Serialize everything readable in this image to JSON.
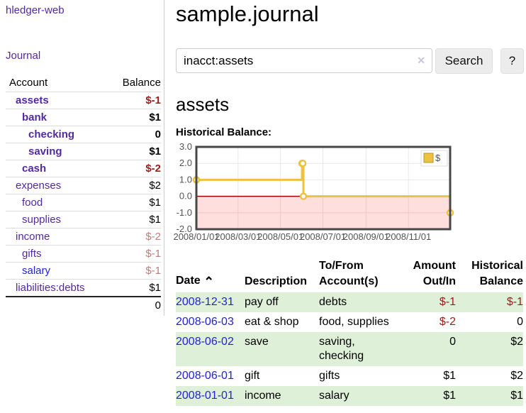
{
  "colors": {
    "link_purple": "#5329a0",
    "link_blue": "#2222dd",
    "negative_strong": "#9d1b1b",
    "negative_soft": "#bd7c7c",
    "row_stripe_green": "#dff0d8",
    "series_gold": "#edc240",
    "zero_line_red": "#a00000"
  },
  "app": {
    "brand": "hledger-web"
  },
  "nav": {
    "journal": "Journal"
  },
  "sidebar": {
    "header": {
      "account": "Account",
      "balance": "Balance"
    },
    "accounts": [
      {
        "name": "assets",
        "balance": "$-1"
      },
      {
        "name": "bank",
        "balance": "$1"
      },
      {
        "name": "checking",
        "balance": "0"
      },
      {
        "name": "saving",
        "balance": "$1"
      },
      {
        "name": "cash",
        "balance": "$-2"
      },
      {
        "name": "expenses",
        "balance": "$2"
      },
      {
        "name": "food",
        "balance": "$1"
      },
      {
        "name": "supplies",
        "balance": "$1"
      },
      {
        "name": "income",
        "balance": "$-2"
      },
      {
        "name": "gifts",
        "balance": "$-1"
      },
      {
        "name": "salary",
        "balance": "$-1"
      },
      {
        "name": "liabilities:debts",
        "balance": "$1"
      }
    ],
    "total": "0"
  },
  "header": {
    "title": "sample.journal"
  },
  "search": {
    "query": "inacct:assets",
    "clear_icon": "✕",
    "button": "Search",
    "help_button": "?"
  },
  "register": {
    "heading": "assets",
    "chart_title": "Historical Balance:",
    "table": {
      "headers": {
        "date": "Date",
        "sort_icon": "⌃",
        "description": "Description",
        "account_line1": "To/From",
        "account_line2": "Account(s)",
        "amount_line1": "Amount",
        "amount_line2": "Out/In",
        "balance_line1": "Historical",
        "balance_line2": "Balance"
      },
      "rows": [
        {
          "date": "2008-12-31",
          "description": "pay off",
          "accounts": "debts",
          "amount": "$-1",
          "balance": "$-1"
        },
        {
          "date": "2008-06-03",
          "description": "eat & shop",
          "accounts": "food, supplies",
          "amount": "$-2",
          "balance": "0"
        },
        {
          "date": "2008-06-02",
          "description": "save",
          "accounts": "saving, checking",
          "amount": "0",
          "balance": "$2"
        },
        {
          "date": "2008-06-01",
          "description": "gift",
          "accounts": "gifts",
          "amount": "$1",
          "balance": "$2"
        },
        {
          "date": "2008-01-01",
          "description": "income",
          "accounts": "salary",
          "amount": "$1",
          "balance": "$1"
        }
      ]
    }
  },
  "chart_data": {
    "type": "line",
    "step": true,
    "title": "Historical Balance",
    "series": [
      {
        "name": "$",
        "color": "#edc240",
        "points": [
          [
            "2008-01-01",
            1
          ],
          [
            "2008-06-01",
            2
          ],
          [
            "2008-06-02",
            2
          ],
          [
            "2008-06-03",
            0
          ],
          [
            "2008-12-31",
            -1
          ]
        ]
      }
    ],
    "x_domain": [
      "2008-01-01",
      "2008-12-31"
    ],
    "xticks": [
      "2008/01/01",
      "2008/03/01",
      "2008/05/01",
      "2008/07/01",
      "2008/09/01",
      "2008/11/01"
    ],
    "yticks": [
      3.0,
      2.0,
      1.0,
      0.0,
      -1.0,
      -2.0
    ],
    "ylim": [
      -2,
      3
    ],
    "grid": true,
    "legend_position": "top-right",
    "negative_region": {
      "below": 0,
      "color": "rgba(255,0,0,0.13)",
      "line_color": "#a00000"
    }
  }
}
